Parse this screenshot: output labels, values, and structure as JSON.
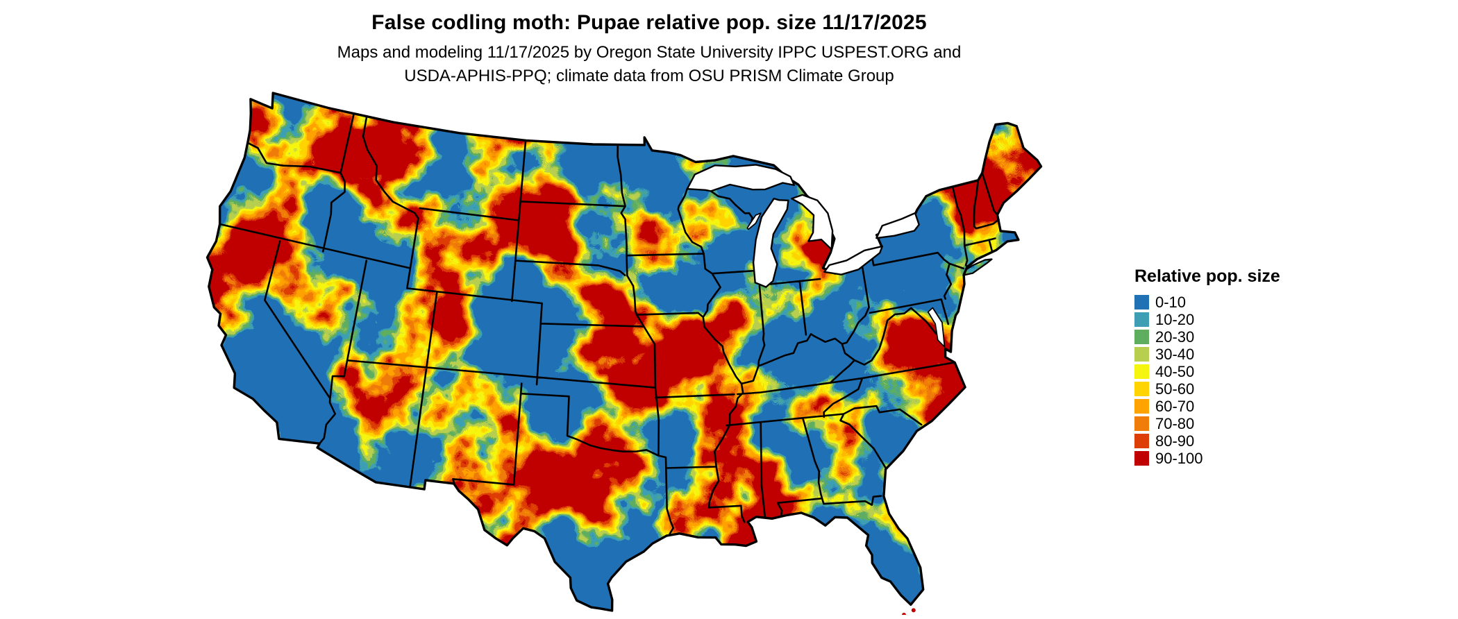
{
  "title": "False codling moth: Pupae relative pop. size 11/17/2025",
  "subtitle": [
    "Maps and modeling 11/17/2025 by Oregon State University IPPC USPEST.ORG and",
    "USDA-APHIS-PPQ; climate data from OSU PRISM Climate Group"
  ],
  "legend": {
    "title": "Relative pop. size",
    "items": [
      {
        "label": "0-10",
        "color": "#2171B5"
      },
      {
        "label": "10-20",
        "color": "#3E9FB4"
      },
      {
        "label": "20-30",
        "color": "#5FAE60"
      },
      {
        "label": "30-40",
        "color": "#B8CE4F"
      },
      {
        "label": "40-50",
        "color": "#F5F50F"
      },
      {
        "label": "50-60",
        "color": "#FFD400"
      },
      {
        "label": "60-70",
        "color": "#FFA300"
      },
      {
        "label": "70-80",
        "color": "#F07D0A"
      },
      {
        "label": "80-90",
        "color": "#DD3E05"
      },
      {
        "label": "90-100",
        "color": "#C00000"
      }
    ]
  },
  "map": {
    "region": "Contiguous United States",
    "border_color": "#000000",
    "water_color": "#FFFFFF",
    "background_color": "#FFFFFF"
  }
}
